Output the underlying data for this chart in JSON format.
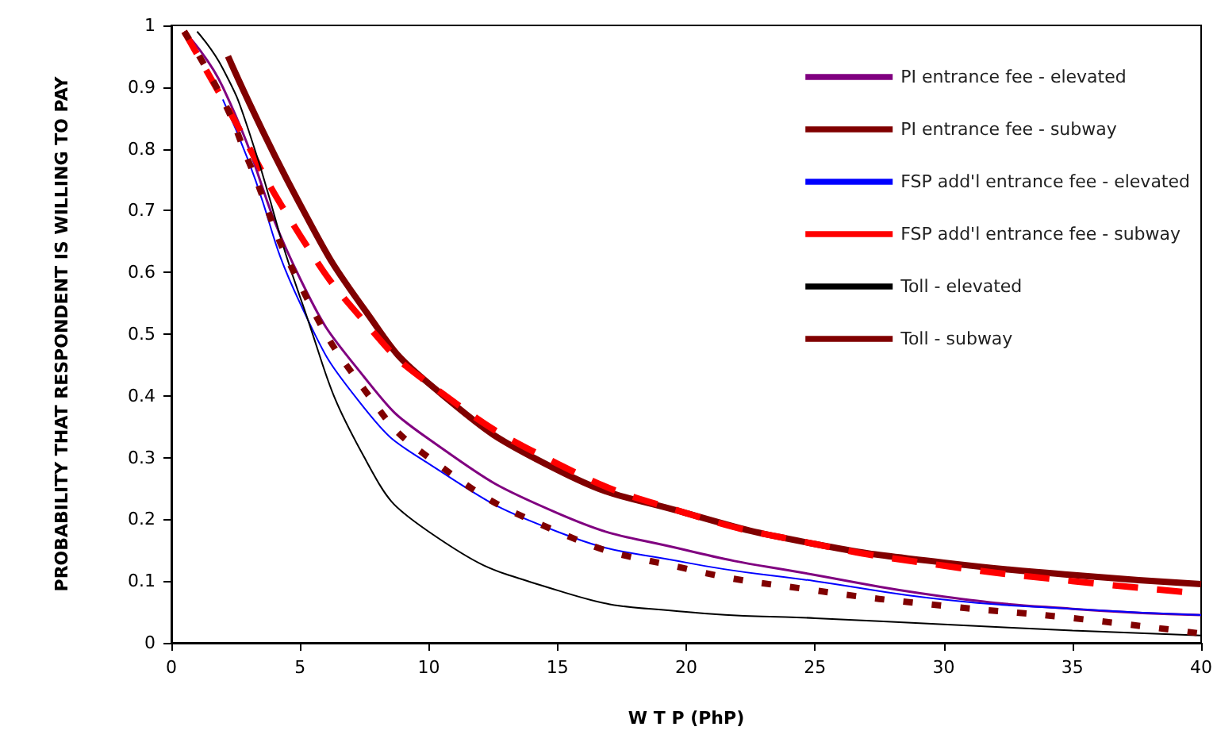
{
  "chart_data": {
    "type": "line",
    "xlabel": "W T P (PhP)",
    "ylabel": "PROBABILITY THAT RESPONDENT IS WILLING TO PAY",
    "xlim": [
      0,
      40
    ],
    "xticks": [
      0,
      5,
      10,
      15,
      20,
      25,
      30,
      35,
      40
    ],
    "ylim": [
      0,
      1
    ],
    "yticks": [
      0,
      0.1,
      0.2,
      0.3,
      0.4,
      0.5,
      0.6,
      0.7,
      0.8,
      0.9,
      1
    ],
    "grid": false,
    "legend": "top right",
    "marker": "none",
    "series": [
      {
        "name": "PI entrance fee - elevated",
        "color": "#800080",
        "line_style": "solid",
        "x": [
          0.5,
          2,
          5,
          7.5,
          10,
          15,
          20,
          25,
          30,
          35,
          40
        ],
        "values": [
          0.99,
          0.9,
          0.59,
          0.43,
          0.33,
          0.21,
          0.15,
          0.11,
          0.075,
          0.055,
          0.045
        ]
      },
      {
        "name": "PI entrance fee - subway",
        "color": "#800000",
        "line_style": "solid",
        "x": [
          2.2,
          5,
          7.5,
          10,
          15,
          20,
          25,
          30,
          35,
          40
        ],
        "values": [
          0.95,
          0.71,
          0.54,
          0.42,
          0.28,
          0.21,
          0.16,
          0.13,
          0.11,
          0.095
        ]
      },
      {
        "name": "FSP add'l entrance fee - elevated",
        "color": "#0000ff",
        "line_style": "solid",
        "x": [
          2,
          3,
          5,
          7.5,
          10,
          15,
          20,
          25,
          30,
          35,
          40
        ],
        "values": [
          0.88,
          0.78,
          0.55,
          0.38,
          0.29,
          0.18,
          0.13,
          0.1,
          0.07,
          0.055,
          0.045
        ]
      },
      {
        "name": "FSP add'l entrance fee - subway",
        "color": "#ff0000",
        "line_style": "dashed",
        "x": [
          0.5,
          2,
          5,
          7.5,
          10,
          15,
          20,
          25,
          30,
          35,
          40
        ],
        "values": [
          0.99,
          0.88,
          0.66,
          0.52,
          0.42,
          0.29,
          0.21,
          0.16,
          0.125,
          0.1,
          0.08
        ]
      },
      {
        "name": "Toll - elevated",
        "color": "#000000",
        "line_style": "solid",
        "x": [
          1,
          2,
          3,
          5,
          7.5,
          10,
          15,
          20,
          25,
          30,
          35,
          40
        ],
        "values": [
          0.99,
          0.93,
          0.83,
          0.56,
          0.3,
          0.18,
          0.085,
          0.05,
          0.04,
          0.03,
          0.02,
          0.012
        ]
      },
      {
        "name": "Toll - subway",
        "color": "#800000",
        "line_style": "dotted",
        "x": [
          0.5,
          2,
          3,
          5,
          7.5,
          10,
          15,
          20,
          25,
          30,
          35,
          40
        ],
        "values": [
          0.99,
          0.88,
          0.78,
          0.58,
          0.41,
          0.3,
          0.18,
          0.12,
          0.085,
          0.06,
          0.04,
          0.015
        ]
      }
    ]
  }
}
